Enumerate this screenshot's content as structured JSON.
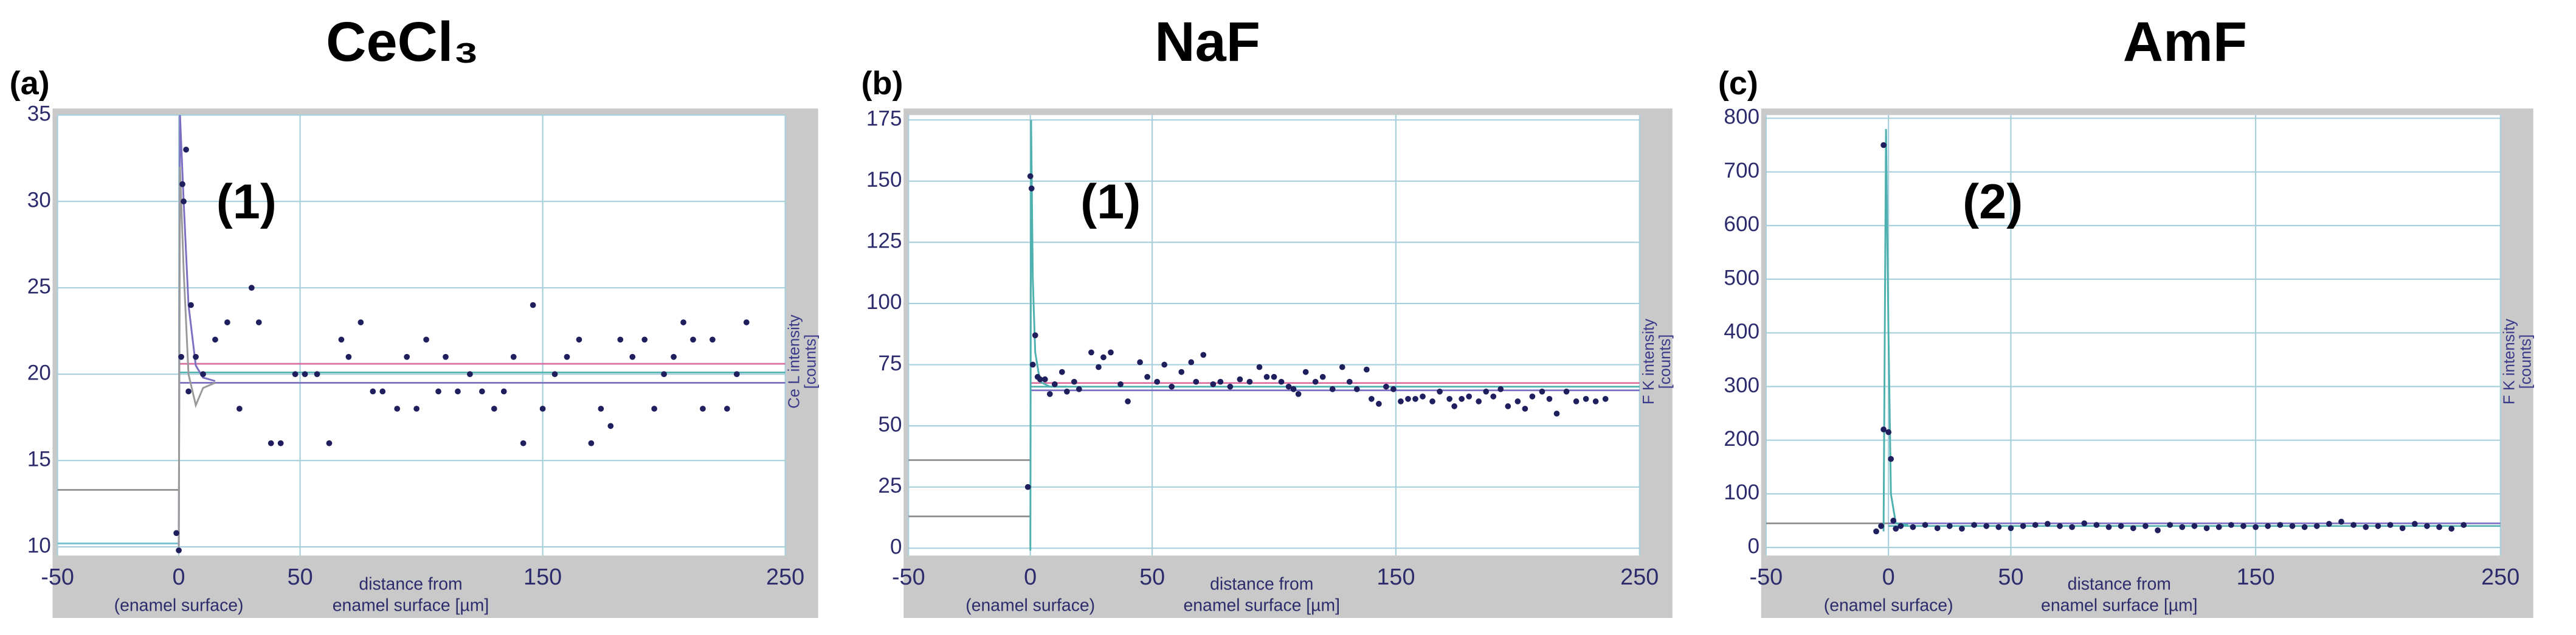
{
  "chart_data": [
    {
      "type": "scatter",
      "title": "CeCl₃",
      "panel_label": "(a)",
      "annotation": "(1)",
      "xlabel": [
        "distance from",
        "enamel surface [µm]"
      ],
      "x_origin_label": "(enamel surface)",
      "ylabel": [
        "Ce L intensity",
        "[counts]"
      ],
      "xlim": [
        -50,
        250
      ],
      "xticks": [
        -50,
        0,
        50,
        150,
        250
      ],
      "ylim": [
        9.5,
        35
      ],
      "yticks": [
        10,
        15,
        20,
        25,
        30,
        35
      ],
      "grid": true,
      "color": "#1f1f5e",
      "x": [
        -1,
        0,
        1,
        1.5,
        2,
        3,
        4,
        5,
        7,
        10,
        15,
        20,
        25,
        30,
        33,
        38,
        42,
        48,
        52,
        57,
        62,
        67,
        70,
        75,
        80,
        84,
        90,
        94,
        98,
        102,
        107,
        110,
        115,
        120,
        125,
        130,
        134,
        138,
        142,
        146,
        150,
        155,
        160,
        165,
        170,
        174,
        178,
        182,
        187,
        192,
        196,
        200,
        204,
        208,
        212,
        216,
        220,
        226,
        230,
        234
      ],
      "values": [
        10.8,
        9.8,
        21,
        31,
        30,
        33,
        19,
        24,
        21,
        20,
        22,
        23,
        18,
        25,
        23,
        16,
        16,
        20,
        20,
        20,
        16,
        22,
        21,
        23,
        19,
        19,
        18,
        21,
        18,
        22,
        19,
        21,
        19,
        20,
        19,
        18,
        19,
        21,
        16,
        24,
        18,
        20,
        21,
        22,
        16,
        18,
        17,
        22,
        21,
        22,
        18,
        20,
        21,
        23,
        22,
        18,
        22,
        18,
        20,
        23
      ],
      "reference_lines": [
        {
          "value": 20.6,
          "color": "#d86fa0"
        },
        {
          "value": 20.1,
          "color": "#4fb0b0"
        },
        {
          "value": 19.5,
          "color": "#7a6fc0"
        }
      ],
      "baseline_lines": [
        {
          "value": 13.3,
          "color": "#8a8a8a"
        },
        {
          "value": 10.2,
          "color": "#6fc0d0"
        }
      ],
      "fit_curves": [
        {
          "color": "#7a6fc0",
          "x": [
            0,
            0.5,
            2,
            4,
            7,
            10,
            15
          ],
          "values": [
            10,
            35,
            30,
            24,
            20.5,
            19.8,
            19.6
          ]
        },
        {
          "color": "#9a9a9a",
          "x": [
            0,
            0.5,
            2,
            4,
            7,
            10,
            15
          ],
          "values": [
            10,
            32,
            26,
            20,
            18.2,
            19.2,
            19.5
          ]
        }
      ]
    },
    {
      "type": "scatter",
      "title": "NaF",
      "panel_label": "(b)",
      "annotation": "(1)",
      "xlabel": [
        "distance from",
        "enamel surface [µm]"
      ],
      "x_origin_label": "(enamel surface)",
      "ylabel": [
        "F K intensity",
        "[counts]"
      ],
      "xlim": [
        -50,
        250
      ],
      "xticks": [
        -50,
        0,
        50,
        150,
        250
      ],
      "ylim": [
        -3,
        177
      ],
      "yticks": [
        0,
        25,
        50,
        75,
        100,
        125,
        150,
        175
      ],
      "grid": true,
      "color": "#1f1f5e",
      "x": [
        -1,
        0,
        0.5,
        1,
        2,
        3,
        4,
        6,
        8,
        10,
        13,
        15,
        18,
        20,
        25,
        28,
        30,
        33,
        37,
        40,
        45,
        48,
        52,
        55,
        58,
        62,
        66,
        68,
        71,
        75,
        78,
        82,
        86,
        90,
        94,
        97,
        100,
        103,
        106,
        108,
        110,
        113,
        117,
        120,
        124,
        128,
        131,
        134,
        138,
        140,
        143,
        146,
        149,
        152,
        155,
        158,
        161,
        165,
        168,
        172,
        174,
        177,
        180,
        184,
        187,
        190,
        193,
        196,
        200,
        203,
        206,
        210,
        213,
        216,
        220,
        224,
        228,
        232,
        236
      ],
      "values": [
        25,
        152,
        147,
        75,
        87,
        70,
        69,
        69,
        63,
        67,
        72,
        64,
        68,
        65,
        80,
        74,
        78,
        80,
        67,
        60,
        76,
        70,
        68,
        75,
        66,
        72,
        76,
        68,
        79,
        67,
        68,
        66,
        69,
        68,
        74,
        70,
        70,
        68,
        66,
        65,
        63,
        72,
        68,
        70,
        65,
        74,
        68,
        65,
        73,
        61,
        59,
        66,
        65,
        60,
        61,
        61,
        62,
        60,
        64,
        61,
        58,
        61,
        62,
        60,
        64,
        62,
        65,
        58,
        60,
        57,
        62,
        64,
        61,
        55,
        64,
        60,
        61,
        60,
        61
      ],
      "reference_lines": [
        {
          "value": 67.5,
          "color": "#d86fa0"
        },
        {
          "value": 66,
          "color": "#4fb0b0"
        },
        {
          "value": 64.5,
          "color": "#7a6fc0"
        }
      ],
      "baseline_lines": [
        {
          "value": 36,
          "color": "#8a8a8a"
        },
        {
          "value": 13,
          "color": "#8a8a8a"
        }
      ],
      "fit_curves": [
        {
          "color": "#4fb0b0",
          "x": [
            0,
            0.3,
            1,
            2,
            4,
            8,
            15
          ],
          "values": [
            -1,
            175,
            110,
            80,
            68,
            66,
            66
          ]
        }
      ]
    },
    {
      "type": "scatter",
      "title": "AmF",
      "panel_label": "(c)",
      "annotation": "(2)",
      "xlabel": [
        "distance from",
        "enamel surface [µm]"
      ],
      "x_origin_label": "(enamel surface)",
      "ylabel": [
        "F K intensity",
        "[counts]"
      ],
      "xlim": [
        -50,
        250
      ],
      "xticks": [
        -50,
        0,
        50,
        150,
        250
      ],
      "ylim": [
        -15,
        806
      ],
      "yticks": [
        0,
        100,
        200,
        300,
        400,
        500,
        600,
        700,
        800
      ],
      "grid": true,
      "color": "#1f1f5e",
      "x": [
        -5,
        -3,
        -2,
        -2,
        0,
        1,
        2,
        3,
        5,
        10,
        15,
        20,
        25,
        30,
        35,
        40,
        45,
        50,
        55,
        60,
        65,
        70,
        75,
        80,
        85,
        90,
        95,
        100,
        105,
        110,
        115,
        120,
        125,
        130,
        135,
        140,
        145,
        150,
        155,
        160,
        165,
        170,
        175,
        180,
        185,
        190,
        195,
        200,
        205,
        210,
        215,
        220,
        225,
        230,
        235
      ],
      "values": [
        30,
        40,
        750,
        220,
        215,
        165,
        50,
        35,
        40,
        38,
        42,
        36,
        40,
        35,
        42,
        40,
        38,
        36,
        40,
        42,
        44,
        40,
        38,
        45,
        42,
        38,
        40,
        36,
        40,
        32,
        42,
        38,
        40,
        36,
        38,
        42,
        40,
        38,
        40,
        42,
        40,
        38,
        40,
        44,
        48,
        42,
        38,
        40,
        42,
        36,
        44,
        40,
        38,
        35,
        42
      ],
      "reference_lines": [
        {
          "value": 45,
          "color": "#7a6fc0"
        },
        {
          "value": 40,
          "color": "#4fb0b0"
        }
      ],
      "baseline_lines": [
        {
          "value": 45,
          "color": "#8a8a8a"
        }
      ],
      "fit_curves": [
        {
          "color": "#4fb0b0",
          "x": [
            -2,
            -1,
            0,
            1,
            3,
            8
          ],
          "values": [
            30,
            780,
            400,
            100,
            45,
            42
          ]
        }
      ]
    }
  ]
}
